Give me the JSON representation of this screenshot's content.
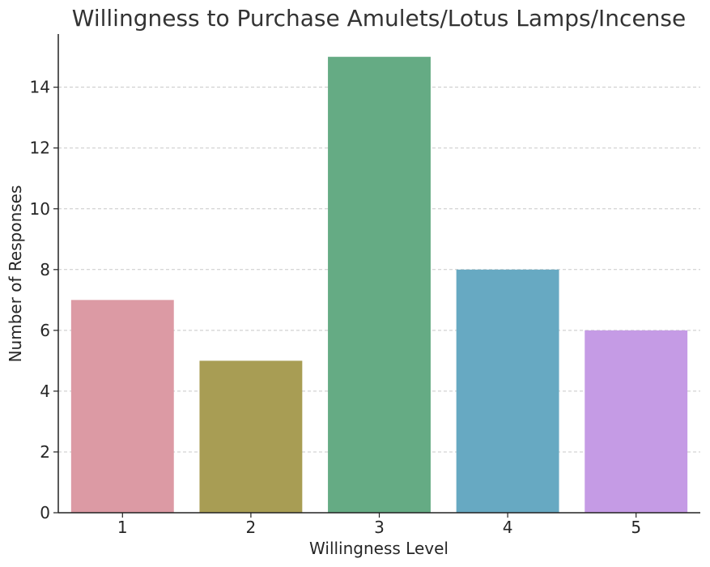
{
  "chart_data": {
    "type": "bar",
    "title": "Willingness to Purchase Amulets/Lotus Lamps/Incense",
    "xlabel": "Willingness Level",
    "ylabel": "Number of Responses",
    "categories": [
      "1",
      "2",
      "3",
      "4",
      "5"
    ],
    "values": [
      7,
      5,
      15,
      8,
      6
    ],
    "colors": [
      "#dc9aa4",
      "#a89d54",
      "#65ab84",
      "#67a9c2",
      "#c59be5"
    ],
    "ylim": [
      0,
      15.75
    ],
    "yticks": [
      0,
      2,
      4,
      6,
      8,
      10,
      12,
      14
    ],
    "grid": "y-dashed"
  }
}
